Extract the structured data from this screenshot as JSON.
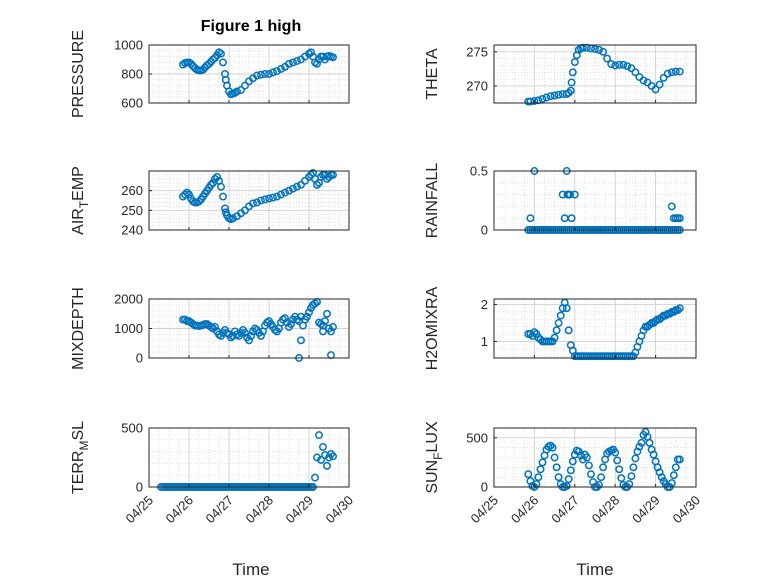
{
  "figure": {
    "title": "Figure 1 high",
    "xlabel_left": "Time",
    "xlabel_right": "Time",
    "date_ticks": [
      "04/25",
      "04/26",
      "04/27",
      "04/28",
      "04/29",
      "04/30"
    ]
  },
  "colors": {
    "marker": "#0072BD",
    "axis": "#262626",
    "grid": "#d0d0d0"
  },
  "chart_data": [
    {
      "type": "scatter",
      "ylabel_prefix": "PRESSURE",
      "ylabel_sub": "",
      "ylabel_suffix": "",
      "ylim": [
        600,
        1000
      ],
      "yticks": [
        600,
        800,
        1000
      ],
      "x": [
        25.85,
        25.9,
        25.95,
        26.0,
        26.05,
        26.1,
        26.15,
        26.2,
        26.25,
        26.3,
        26.35,
        26.4,
        26.45,
        26.5,
        26.55,
        26.6,
        26.65,
        26.7,
        26.75,
        26.8,
        26.85,
        26.9,
        26.92,
        26.95,
        27.0,
        27.05,
        27.1,
        27.15,
        27.2,
        27.3,
        27.4,
        27.5,
        27.6,
        27.7,
        27.8,
        27.9,
        28.0,
        28.1,
        28.2,
        28.3,
        28.4,
        28.5,
        28.6,
        28.7,
        28.8,
        28.9,
        29.0,
        29.05,
        29.1,
        29.15,
        29.2,
        29.25,
        29.3,
        29.35,
        29.4,
        29.45,
        29.5,
        29.55,
        29.6
      ],
      "y": [
        865,
        875,
        880,
        880,
        870,
        855,
        840,
        830,
        825,
        825,
        830,
        845,
        860,
        870,
        885,
        900,
        910,
        930,
        950,
        940,
        880,
        800,
        760,
        720,
        680,
        660,
        665,
        670,
        680,
        690,
        720,
        750,
        770,
        790,
        795,
        800,
        800,
        810,
        820,
        835,
        850,
        870,
        880,
        890,
        900,
        920,
        940,
        950,
        920,
        880,
        870,
        900,
        920,
        920,
        900,
        920,
        925,
        920,
        915
      ]
    },
    {
      "type": "scatter",
      "ylabel_prefix": "THETA",
      "ylabel_sub": "",
      "ylabel_suffix": "",
      "ylim": [
        267.5,
        276
      ],
      "yticks": [
        270,
        275
      ],
      "x": [
        25.85,
        25.9,
        26.0,
        26.1,
        26.2,
        26.3,
        26.4,
        26.5,
        26.6,
        26.7,
        26.8,
        26.85,
        26.9,
        26.92,
        26.95,
        27.0,
        27.05,
        27.1,
        27.15,
        27.2,
        27.3,
        27.4,
        27.5,
        27.6,
        27.7,
        27.8,
        27.9,
        28.0,
        28.1,
        28.2,
        28.3,
        28.4,
        28.5,
        28.6,
        28.7,
        28.8,
        28.9,
        29.0,
        29.1,
        29.2,
        29.3,
        29.4,
        29.5,
        29.6
      ],
      "y": [
        267.7,
        267.7,
        267.8,
        267.9,
        268.1,
        268.3,
        268.5,
        268.6,
        268.7,
        268.8,
        268.8,
        269.0,
        269.3,
        270.5,
        272.0,
        273.5,
        274.5,
        275.3,
        275.5,
        275.6,
        275.6,
        275.5,
        275.4,
        275.3,
        275.0,
        274.0,
        273.2,
        273.0,
        273.1,
        273.1,
        272.9,
        272.6,
        272.0,
        271.3,
        270.8,
        270.5,
        270.0,
        269.5,
        270.2,
        271.2,
        271.8,
        272.0,
        272.1,
        272.1
      ]
    },
    {
      "type": "scatter",
      "ylabel_prefix": "AIR",
      "ylabel_sub": "T",
      "ylabel_suffix": "EMP",
      "ylim": [
        240,
        270
      ],
      "yticks": [
        240,
        250,
        260
      ],
      "x": [
        25.85,
        25.9,
        25.95,
        26.0,
        26.05,
        26.1,
        26.15,
        26.2,
        26.25,
        26.3,
        26.35,
        26.4,
        26.45,
        26.5,
        26.55,
        26.6,
        26.65,
        26.7,
        26.75,
        26.8,
        26.85,
        26.9,
        26.92,
        26.95,
        27.0,
        27.05,
        27.1,
        27.2,
        27.3,
        27.4,
        27.5,
        27.6,
        27.7,
        27.8,
        27.9,
        28.0,
        28.1,
        28.2,
        28.3,
        28.4,
        28.5,
        28.6,
        28.7,
        28.8,
        28.9,
        29.0,
        29.05,
        29.1,
        29.15,
        29.2,
        29.25,
        29.3,
        29.35,
        29.4,
        29.45,
        29.5,
        29.55,
        29.6
      ],
      "y": [
        257,
        258,
        259,
        258,
        256,
        254.5,
        254,
        254,
        254.5,
        255.5,
        257,
        258.5,
        260,
        261.5,
        263,
        264,
        266,
        267,
        265,
        262,
        257,
        251,
        249,
        247.5,
        246,
        245.5,
        246,
        247,
        248.5,
        250,
        252,
        253.5,
        254,
        255,
        255.5,
        256,
        256.5,
        257,
        258,
        259,
        260,
        261,
        262,
        263,
        265,
        267,
        268,
        269,
        266,
        263,
        264,
        267,
        268,
        268,
        266,
        267,
        268,
        268
      ]
    },
    {
      "type": "scatter",
      "ylabel_prefix": "RAINFALL",
      "ylabel_sub": "",
      "ylabel_suffix": "",
      "ylim": [
        0,
        0.5
      ],
      "yticks": [
        0,
        0.5
      ],
      "x": [
        25.85,
        25.9,
        25.95,
        26.0,
        26.05,
        26.1,
        26.15,
        26.2,
        26.25,
        26.3,
        26.35,
        26.4,
        26.45,
        26.5,
        26.55,
        26.6,
        26.65,
        26.7,
        26.75,
        26.8,
        26.85,
        26.9,
        26.95,
        27.0,
        27.05,
        27.1,
        27.15,
        27.2,
        27.25,
        27.3,
        27.35,
        27.4,
        27.45,
        27.5,
        27.55,
        27.6,
        27.65,
        27.7,
        27.75,
        27.8,
        27.85,
        27.9,
        27.95,
        28.0,
        28.05,
        28.1,
        28.15,
        28.2,
        28.25,
        28.3,
        28.35,
        28.4,
        28.45,
        28.5,
        28.55,
        28.6,
        28.65,
        28.7,
        28.75,
        28.8,
        28.85,
        28.9,
        28.95,
        29.0,
        29.05,
        29.1,
        29.15,
        29.2,
        29.25,
        29.3,
        29.35,
        29.4,
        29.45,
        29.5,
        29.55,
        29.6,
        25.9,
        26.0,
        26.7,
        26.75,
        26.8,
        26.82,
        26.85,
        26.88,
        26.92,
        27.0,
        29.4,
        29.45,
        29.5,
        29.55,
        29.6
      ],
      "y": [
        0,
        0,
        0,
        0,
        0,
        0,
        0,
        0,
        0,
        0,
        0,
        0,
        0,
        0,
        0,
        0,
        0,
        0,
        0,
        0,
        0,
        0,
        0,
        0,
        0,
        0,
        0,
        0,
        0,
        0,
        0,
        0,
        0,
        0,
        0,
        0,
        0,
        0,
        0,
        0,
        0,
        0,
        0,
        0,
        0,
        0,
        0,
        0,
        0,
        0,
        0,
        0,
        0,
        0,
        0,
        0,
        0,
        0,
        0,
        0,
        0,
        0,
        0,
        0,
        0,
        0,
        0,
        0,
        0,
        0,
        0,
        0,
        0,
        0,
        0,
        0,
        0.1,
        0.5,
        0.3,
        0.1,
        0.5,
        0.3,
        0.3,
        0.3,
        0.1,
        0.3,
        0.2,
        0.1,
        0.1,
        0.1,
        0.1
      ]
    },
    {
      "type": "scatter",
      "ylabel_prefix": "MIXDEPTH",
      "ylabel_sub": "",
      "ylabel_suffix": "",
      "ylim": [
        0,
        2000
      ],
      "yticks": [
        0,
        1000,
        2000
      ],
      "x": [
        25.85,
        25.9,
        25.95,
        26.0,
        26.05,
        26.1,
        26.15,
        26.2,
        26.25,
        26.3,
        26.35,
        26.4,
        26.45,
        26.5,
        26.55,
        26.6,
        26.65,
        26.7,
        26.75,
        26.8,
        26.85,
        26.9,
        26.95,
        27.0,
        27.05,
        27.1,
        27.15,
        27.2,
        27.25,
        27.3,
        27.35,
        27.4,
        27.45,
        27.5,
        27.55,
        27.6,
        27.65,
        27.7,
        27.75,
        27.8,
        27.85,
        27.9,
        27.95,
        28.0,
        28.05,
        28.1,
        28.15,
        28.2,
        28.25,
        28.3,
        28.35,
        28.4,
        28.45,
        28.5,
        28.55,
        28.6,
        28.65,
        28.7,
        28.75,
        28.8,
        28.85,
        28.9,
        28.95,
        29.0,
        29.05,
        29.1,
        29.15,
        29.2,
        29.25,
        29.3,
        29.35,
        29.4,
        29.45,
        29.5,
        29.55,
        29.6,
        28.75,
        28.8,
        29.35,
        29.55
      ],
      "y": [
        1300,
        1300,
        1250,
        1250,
        1200,
        1150,
        1100,
        1100,
        1080,
        1100,
        1120,
        1150,
        1150,
        1100,
        1050,
        1000,
        1050,
        900,
        800,
        750,
        850,
        950,
        850,
        800,
        700,
        750,
        900,
        800,
        750,
        850,
        950,
        850,
        700,
        600,
        750,
        900,
        1000,
        950,
        850,
        750,
        900,
        1100,
        1200,
        1250,
        1150,
        1050,
        950,
        900,
        1000,
        1200,
        1300,
        1350,
        1200,
        1050,
        1150,
        1300,
        1400,
        1300,
        1250,
        1400,
        1100,
        1300,
        1400,
        1550,
        1700,
        1800,
        1850,
        1900,
        1200,
        1150,
        1100,
        1250,
        1500,
        1000,
        900,
        1050,
        0,
        600,
        900,
        100
      ]
    },
    {
      "type": "scatter",
      "ylabel_prefix": "H2OMIXRA",
      "ylabel_sub": "",
      "ylabel_suffix": "",
      "ylim": [
        0.55,
        2.15
      ],
      "yticks": [
        1,
        2
      ],
      "x": [
        25.85,
        25.9,
        25.95,
        26.0,
        26.05,
        26.1,
        26.15,
        26.2,
        26.25,
        26.3,
        26.35,
        26.4,
        26.45,
        26.5,
        26.55,
        26.6,
        26.65,
        26.7,
        26.75,
        26.8,
        26.85,
        26.9,
        26.95,
        27.0,
        27.05,
        27.1,
        27.15,
        27.2,
        27.25,
        27.3,
        27.35,
        27.4,
        27.45,
        27.5,
        27.55,
        27.6,
        27.65,
        27.7,
        27.75,
        27.8,
        27.85,
        27.9,
        27.95,
        28.0,
        28.05,
        28.1,
        28.15,
        28.2,
        28.25,
        28.3,
        28.35,
        28.4,
        28.45,
        28.5,
        28.55,
        28.6,
        28.65,
        28.7,
        28.75,
        28.8,
        28.85,
        28.9,
        28.95,
        29.0,
        29.05,
        29.1,
        29.15,
        29.2,
        29.25,
        29.3,
        29.35,
        29.4,
        29.45,
        29.5,
        29.55,
        29.6
      ],
      "y": [
        1.2,
        1.2,
        1.15,
        1.25,
        1.2,
        1.1,
        1.05,
        1.0,
        1.0,
        1.0,
        1.0,
        1.0,
        1.0,
        1.1,
        1.3,
        1.5,
        1.7,
        1.9,
        2.05,
        1.9,
        1.3,
        0.9,
        0.75,
        0.6,
        0.6,
        0.6,
        0.6,
        0.6,
        0.6,
        0.6,
        0.6,
        0.6,
        0.6,
        0.6,
        0.6,
        0.6,
        0.6,
        0.6,
        0.6,
        0.6,
        0.6,
        0.6,
        0.6,
        0.6,
        0.6,
        0.6,
        0.6,
        0.6,
        0.6,
        0.6,
        0.6,
        0.6,
        0.6,
        0.7,
        0.85,
        1.0,
        1.15,
        1.3,
        1.4,
        1.4,
        1.45,
        1.5,
        1.5,
        1.55,
        1.6,
        1.6,
        1.65,
        1.7,
        1.7,
        1.75,
        1.75,
        1.8,
        1.8,
        1.85,
        1.85,
        1.9
      ]
    },
    {
      "type": "scatter",
      "ylabel_prefix": "TERR",
      "ylabel_sub": "M",
      "ylabel_suffix": "SL",
      "ylim": [
        0,
        500
      ],
      "yticks": [
        0,
        500
      ],
      "x": [
        25.3,
        25.35,
        25.4,
        25.45,
        25.5,
        25.55,
        25.6,
        25.65,
        25.7,
        25.75,
        25.8,
        25.85,
        25.9,
        25.95,
        26.0,
        26.05,
        26.1,
        26.15,
        26.2,
        26.25,
        26.3,
        26.35,
        26.4,
        26.45,
        26.5,
        26.55,
        26.6,
        26.65,
        26.7,
        26.75,
        26.8,
        26.85,
        26.9,
        26.95,
        27.0,
        27.05,
        27.1,
        27.15,
        27.2,
        27.25,
        27.3,
        27.35,
        27.4,
        27.45,
        27.5,
        27.55,
        27.6,
        27.65,
        27.7,
        27.75,
        27.8,
        27.85,
        27.9,
        27.95,
        28.0,
        28.05,
        28.1,
        28.15,
        28.2,
        28.25,
        28.3,
        28.35,
        28.4,
        28.45,
        28.5,
        28.55,
        28.6,
        28.65,
        28.7,
        28.75,
        28.8,
        28.85,
        28.9,
        28.95,
        29.0,
        29.05,
        29.1,
        29.15,
        29.2,
        29.25,
        29.3,
        29.35,
        29.4,
        29.45,
        29.5,
        29.55,
        29.6
      ],
      "y": [
        0,
        0,
        0,
        0,
        0,
        0,
        0,
        0,
        0,
        0,
        0,
        0,
        0,
        0,
        0,
        0,
        0,
        0,
        0,
        0,
        0,
        0,
        0,
        0,
        0,
        0,
        0,
        0,
        0,
        0,
        0,
        0,
        0,
        0,
        0,
        0,
        0,
        0,
        0,
        0,
        0,
        0,
        0,
        0,
        0,
        0,
        0,
        0,
        0,
        0,
        0,
        0,
        0,
        0,
        0,
        0,
        0,
        0,
        0,
        0,
        0,
        0,
        0,
        0,
        0,
        0,
        0,
        0,
        0,
        0,
        0,
        0,
        0,
        0,
        0,
        0,
        0,
        80,
        250,
        440,
        230,
        340,
        270,
        180,
        250,
        280,
        260
      ]
    },
    {
      "type": "scatter",
      "ylabel_prefix": "SUN",
      "ylabel_sub": "F",
      "ylabel_suffix": "LUX",
      "ylim": [
        0,
        600
      ],
      "yticks": [
        0,
        500
      ],
      "x": [
        25.85,
        25.9,
        25.95,
        26.0,
        26.05,
        26.1,
        26.15,
        26.2,
        26.25,
        26.3,
        26.35,
        26.4,
        26.45,
        26.5,
        26.55,
        26.6,
        26.65,
        26.7,
        26.75,
        26.8,
        26.85,
        26.9,
        26.95,
        27.0,
        27.05,
        27.1,
        27.15,
        27.2,
        27.25,
        27.3,
        27.35,
        27.4,
        27.45,
        27.5,
        27.55,
        27.6,
        27.65,
        27.7,
        27.75,
        27.8,
        27.85,
        27.9,
        27.95,
        28.0,
        28.05,
        28.1,
        28.15,
        28.2,
        28.25,
        28.3,
        28.35,
        28.4,
        28.45,
        28.5,
        28.55,
        28.6,
        28.65,
        28.7,
        28.75,
        28.8,
        28.85,
        28.9,
        28.95,
        29.0,
        29.05,
        29.1,
        29.15,
        29.2,
        29.25,
        29.3,
        29.35,
        29.4,
        29.45,
        29.5,
        29.55,
        29.6
      ],
      "y": [
        130,
        60,
        10,
        0,
        30,
        100,
        180,
        250,
        320,
        380,
        410,
        420,
        400,
        300,
        200,
        100,
        30,
        0,
        0,
        10,
        80,
        170,
        260,
        330,
        370,
        360,
        320,
        280,
        330,
        300,
        220,
        130,
        50,
        0,
        0,
        20,
        100,
        200,
        280,
        340,
        360,
        370,
        380,
        350,
        270,
        180,
        90,
        20,
        0,
        0,
        30,
        110,
        200,
        290,
        360,
        410,
        450,
        530,
        560,
        510,
        450,
        380,
        330,
        260,
        200,
        150,
        100,
        60,
        30,
        0,
        0,
        40,
        120,
        200,
        280,
        280
      ]
    }
  ]
}
